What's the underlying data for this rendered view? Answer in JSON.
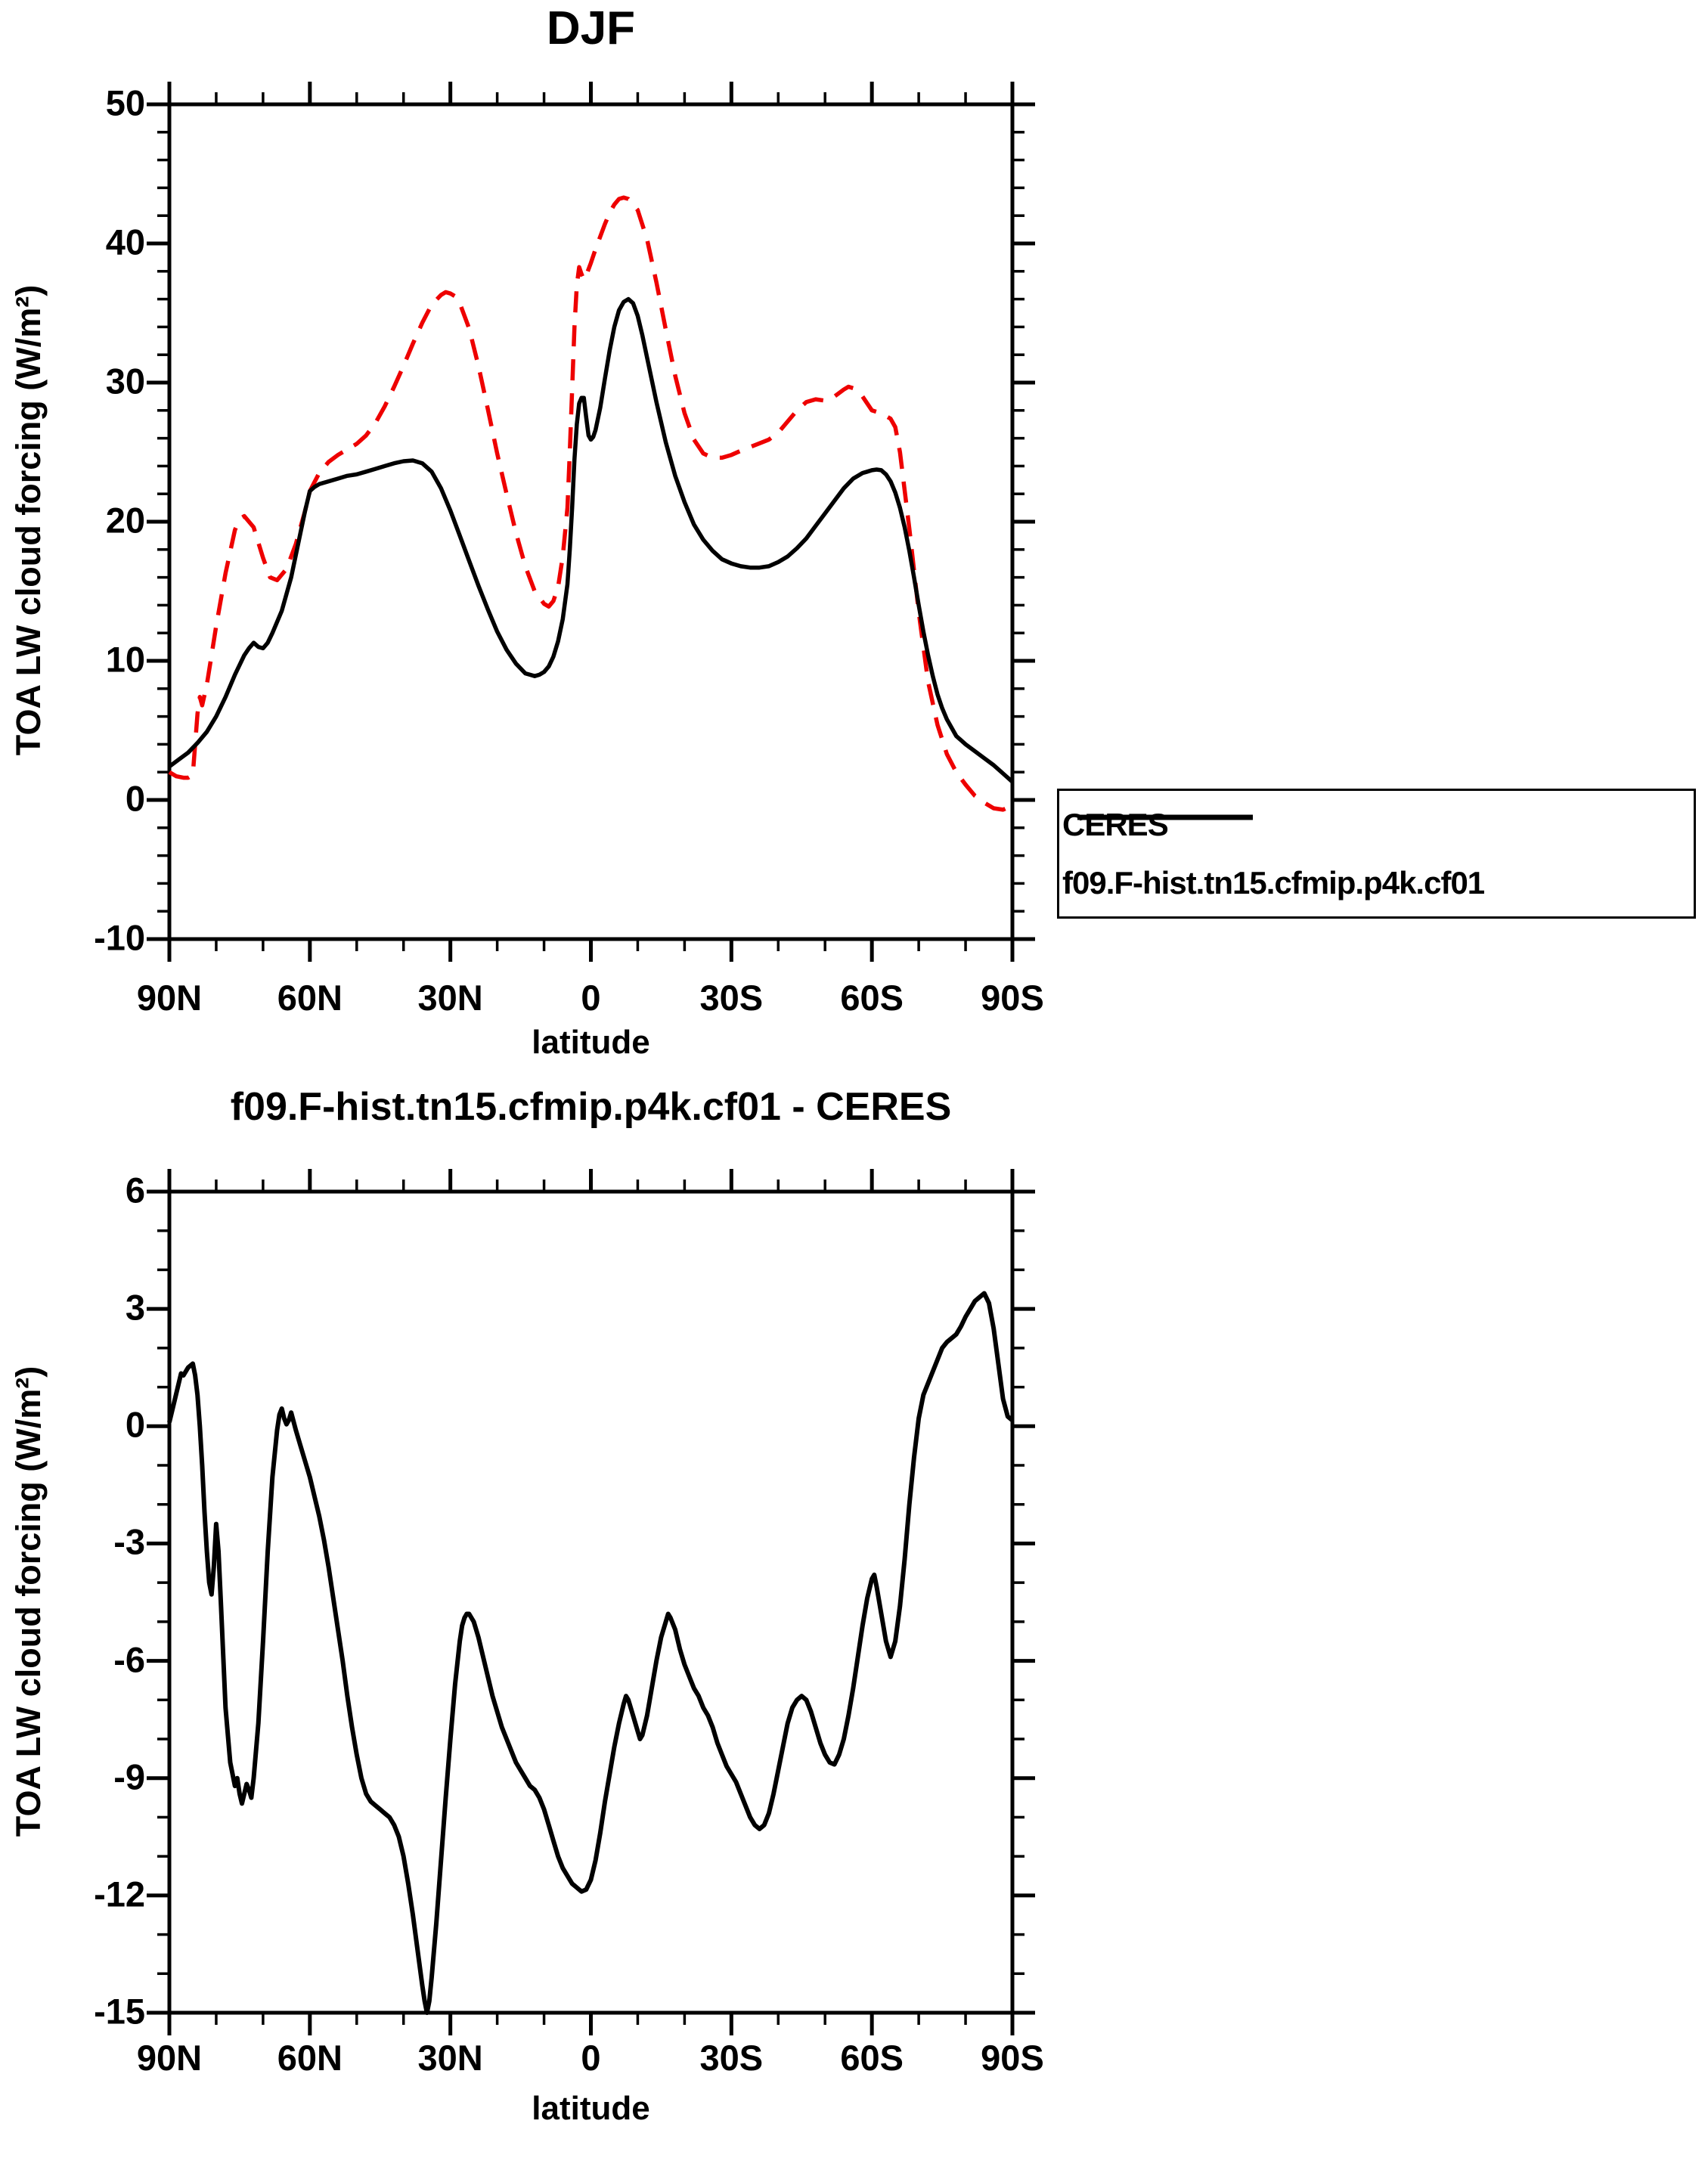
{
  "colors": {
    "ceres": "#ee0000",
    "model": "#000000",
    "frame": "#000000",
    "background": "#ffffff"
  },
  "top_chart": {
    "title": "DJF",
    "ylabel": "TOA LW cloud forcing (W/m²)",
    "xlabel": "latitude",
    "x_tick_labels": [
      "90N",
      "60N",
      "30N",
      "0",
      "30S",
      "60S",
      "90S"
    ],
    "y_tick_labels": [
      "50",
      "40",
      "30",
      "20",
      "10",
      "0",
      "-10"
    ],
    "legend": {
      "entries": [
        {
          "label": "CERES"
        },
        {
          "label": "f09.F-hist.tn15.cfmip.p4k.cf01"
        }
      ]
    }
  },
  "bottom_chart": {
    "title": "f09.F-hist.tn15.cfmip.p4k.cf01 - CERES",
    "ylabel": "TOA LW cloud forcing (W/m²)",
    "xlabel": "latitude",
    "x_tick_labels": [
      "90N",
      "60N",
      "30N",
      "0",
      "30S",
      "60S",
      "90S"
    ],
    "y_tick_labels": [
      "6",
      "3",
      "0",
      "-3",
      "-6",
      "-9",
      "-12",
      "-15"
    ]
  },
  "chart_data": [
    {
      "type": "line",
      "title": "DJF",
      "xlabel": "latitude",
      "ylabel": "TOA LW cloud forcing (W/m2)",
      "xlim": [
        90,
        -90
      ],
      "ylim": [
        -10,
        50
      ],
      "x_major_tick_deg": 30,
      "x_minor_tick_deg": 10,
      "y_major_step": 10,
      "y_minor_step": 2,
      "grid": false,
      "legend_position": "outside-right",
      "series": [
        {
          "name": "CERES",
          "color": "#ee0000",
          "style": "dashed",
          "lat": [
            90,
            88.5,
            87,
            86,
            85,
            84,
            83.5,
            83,
            82,
            81,
            80,
            78,
            76,
            75,
            74,
            72,
            70,
            68.5,
            67,
            65,
            63,
            61,
            60,
            58,
            56,
            54,
            52,
            50,
            48,
            46,
            44,
            42,
            40,
            38,
            36,
            34,
            32,
            31,
            30,
            29,
            28,
            26,
            24,
            22,
            20,
            18,
            16,
            14,
            12,
            10,
            9,
            8,
            7,
            6,
            5,
            4.5,
            4,
            3.5,
            3,
            2.5,
            2,
            1.5,
            1,
            0,
            -1,
            -2,
            -3,
            -4,
            -5,
            -6,
            -7,
            -8,
            -10,
            -12,
            -14,
            -16,
            -18,
            -20,
            -22,
            -24,
            -26,
            -28,
            -30,
            -32,
            -35,
            -38,
            -40,
            -42,
            -44,
            -46,
            -48,
            -50,
            -52,
            -54,
            -55,
            -56,
            -57,
            -58,
            -60,
            -62,
            -63,
            -64,
            -65,
            -66,
            -68,
            -70,
            -72,
            -74,
            -76,
            -78,
            -80,
            -82,
            -84,
            -86,
            -88,
            -90
          ],
          "values": [
            2.0,
            1.7,
            1.6,
            1.6,
            1.8,
            6.2,
            7.4,
            6.8,
            8.3,
            10.4,
            12.5,
            16.3,
            19.4,
            20.2,
            20.4,
            19.6,
            17.4,
            16.0,
            15.8,
            16.6,
            18.4,
            20.8,
            22.2,
            23.5,
            24.3,
            24.8,
            25.2,
            25.6,
            26.2,
            27.1,
            28.3,
            29.7,
            31.2,
            32.8,
            34.3,
            35.6,
            36.3,
            36.5,
            36.4,
            36.2,
            35.7,
            33.9,
            31.2,
            28.1,
            24.9,
            22.0,
            19.2,
            16.8,
            15.0,
            14.1,
            13.9,
            14.3,
            15.3,
            17.5,
            21.0,
            25.0,
            29.5,
            34.0,
            37.0,
            38.3,
            37.8,
            37.4,
            37.7,
            38.6,
            39.6,
            40.5,
            41.4,
            42.2,
            42.8,
            43.2,
            43.3,
            43.2,
            42.4,
            40.3,
            37.2,
            33.8,
            30.5,
            27.8,
            25.9,
            24.9,
            24.6,
            24.6,
            24.8,
            25.1,
            25.5,
            25.9,
            26.4,
            27.2,
            28.0,
            28.6,
            28.8,
            28.7,
            29.0,
            29.5,
            29.7,
            29.6,
            29.2,
            29.0,
            28.0,
            27.8,
            27.6,
            27.4,
            26.8,
            25.0,
            19.5,
            13.5,
            8.5,
            5.4,
            3.3,
            2.0,
            1.1,
            0.3,
            -0.2,
            -0.6,
            -0.7,
            -0.4
          ]
        },
        {
          "name": "f09.F-hist.tn15.cfmip.p4k.cf01",
          "color": "#000000",
          "style": "solid",
          "lat": [
            90,
            88,
            86,
            84,
            82,
            80,
            78,
            76,
            74,
            73,
            72,
            71,
            70,
            69,
            68,
            66,
            64,
            62,
            61,
            60,
            59,
            58,
            56,
            54,
            52,
            50,
            48,
            46,
            44,
            42,
            40,
            38,
            36,
            34,
            32,
            30,
            28,
            26,
            24,
            22,
            20,
            18,
            16,
            14,
            13,
            12,
            11,
            10,
            9,
            8,
            7,
            6,
            5,
            4.5,
            4,
            3.5,
            3,
            2.5,
            2,
            1.5,
            1,
            0.5,
            0,
            -0.5,
            -1,
            -2,
            -3,
            -4,
            -5,
            -6,
            -7,
            -8,
            -9,
            -10,
            -11,
            -12,
            -14,
            -16,
            -18,
            -20,
            -22,
            -24,
            -26,
            -28,
            -30,
            -32,
            -34,
            -36,
            -38,
            -40,
            -42,
            -44,
            -46,
            -48,
            -50,
            -52,
            -54,
            -56,
            -58,
            -59,
            -60,
            -61,
            -62,
            -63,
            -64,
            -65,
            -66,
            -67,
            -68,
            -69,
            -70,
            -71,
            -72,
            -73,
            -74,
            -75,
            -76,
            -78,
            -80,
            -82,
            -84,
            -86,
            -88,
            -90
          ],
          "values": [
            2.4,
            2.9,
            3.4,
            4.1,
            4.9,
            6.0,
            7.4,
            9.0,
            10.4,
            10.9,
            11.3,
            11.0,
            10.9,
            11.3,
            12.0,
            13.6,
            16.0,
            19.2,
            20.8,
            22.2,
            22.5,
            22.7,
            22.9,
            23.1,
            23.3,
            23.4,
            23.6,
            23.8,
            24.0,
            24.2,
            24.35,
            24.4,
            24.2,
            23.6,
            22.4,
            20.8,
            19.0,
            17.2,
            15.4,
            13.7,
            12.1,
            10.8,
            9.8,
            9.1,
            9.0,
            8.9,
            9.0,
            9.2,
            9.6,
            10.3,
            11.4,
            13.0,
            15.5,
            18.0,
            21.0,
            24.5,
            27.0,
            28.5,
            28.9,
            28.9,
            27.5,
            26.2,
            25.9,
            26.1,
            26.6,
            28.2,
            30.3,
            32.3,
            34.0,
            35.2,
            35.8,
            36.0,
            35.7,
            34.8,
            33.4,
            31.8,
            28.6,
            25.7,
            23.3,
            21.4,
            19.8,
            18.7,
            17.9,
            17.3,
            17.0,
            16.8,
            16.7,
            16.7,
            16.8,
            17.1,
            17.5,
            18.1,
            18.8,
            19.7,
            20.6,
            21.5,
            22.4,
            23.1,
            23.5,
            23.6,
            23.7,
            23.75,
            23.7,
            23.4,
            22.9,
            22.1,
            21.0,
            19.6,
            17.9,
            16.0,
            14.0,
            12.1,
            10.4,
            8.9,
            7.6,
            6.6,
            5.8,
            4.6,
            4.0,
            3.5,
            3.0,
            2.5,
            1.9,
            1.3
          ]
        }
      ]
    },
    {
      "type": "line",
      "title": "f09.F-hist.tn15.cfmip.p4k.cf01 - CERES",
      "xlabel": "latitude",
      "ylabel": "TOA LW cloud forcing (W/m2)",
      "xlim": [
        90,
        -90
      ],
      "ylim": [
        -15,
        6
      ],
      "x_major_tick_deg": 30,
      "x_minor_tick_deg": 10,
      "y_major_step": 3,
      "y_minor_step": 1,
      "grid": false,
      "series": [
        {
          "name": "f09.F-hist.tn15.cfmip.p4k.cf01 - CERES",
          "color": "#000000",
          "style": "solid",
          "lat": [
            90,
            89,
            88,
            87.5,
            87,
            86,
            85,
            84.5,
            84,
            83.5,
            83,
            82.5,
            82,
            81.5,
            81,
            80.5,
            80,
            79.5,
            79,
            78,
            77,
            76,
            75.5,
            75,
            74.5,
            74,
            73.5,
            73,
            72.5,
            72,
            71,
            70,
            69,
            68,
            67,
            66.5,
            66,
            65.5,
            65,
            64.5,
            64,
            63,
            62,
            61,
            60,
            59,
            58,
            57,
            56,
            55,
            54,
            53,
            52,
            51,
            50,
            49,
            48,
            47,
            46,
            45,
            44,
            43,
            42,
            41,
            40,
            39,
            38,
            37,
            36,
            35.5,
            35,
            34.5,
            34,
            33,
            32,
            31,
            30,
            29,
            28,
            27.5,
            27,
            26.5,
            26,
            25,
            24,
            23,
            22,
            21,
            20,
            19,
            18,
            17,
            16,
            15,
            14,
            13,
            12,
            11,
            10,
            9,
            8,
            7,
            6,
            5,
            4,
            3,
            2,
            1,
            0,
            -1,
            -2,
            -3,
            -4,
            -5,
            -6,
            -7,
            -7.5,
            -8,
            -9,
            -10,
            -10.5,
            -11,
            -12,
            -13,
            -14,
            -15,
            -16,
            -16.5,
            -17,
            -18,
            -19,
            -20,
            -21,
            -22,
            -23,
            -24,
            -25,
            -26,
            -27,
            -28,
            -29,
            -30,
            -31,
            -32,
            -33,
            -34,
            -35,
            -36,
            -37,
            -38,
            -39,
            -40,
            -41,
            -42,
            -43,
            -44,
            -45,
            -46,
            -47,
            -48,
            -49,
            -50,
            -51,
            -52,
            -53,
            -54,
            -55,
            -56,
            -57,
            -58,
            -59,
            -60,
            -60.5,
            -61,
            -62,
            -63,
            -64,
            -65,
            -66,
            -67,
            -68,
            -69,
            -70,
            -71,
            -72,
            -73,
            -74,
            -75,
            -76,
            -77,
            -78,
            -79,
            -80,
            -81,
            -82,
            -83,
            -84,
            -85,
            -86,
            -87,
            -88,
            -89,
            -90
          ],
          "values": [
            0.1,
            0.6,
            1.1,
            1.35,
            1.3,
            1.5,
            1.6,
            1.3,
            0.8,
            0.0,
            -1.0,
            -2.2,
            -3.2,
            -4.0,
            -4.3,
            -3.6,
            -2.5,
            -3.2,
            -4.5,
            -7.2,
            -8.6,
            -9.2,
            -9.0,
            -9.4,
            -9.65,
            -9.4,
            -9.15,
            -9.3,
            -9.5,
            -9.0,
            -7.6,
            -5.5,
            -3.2,
            -1.3,
            -0.1,
            0.3,
            0.45,
            0.2,
            0.05,
            0.15,
            0.35,
            -0.1,
            -0.5,
            -0.9,
            -1.3,
            -1.8,
            -2.3,
            -2.9,
            -3.6,
            -4.4,
            -5.2,
            -6.0,
            -6.9,
            -7.7,
            -8.4,
            -9.0,
            -9.4,
            -9.6,
            -9.7,
            -9.8,
            -9.9,
            -10.0,
            -10.2,
            -10.5,
            -11.0,
            -11.7,
            -12.5,
            -13.4,
            -14.3,
            -14.7,
            -15.0,
            -14.7,
            -14.1,
            -12.7,
            -11.1,
            -9.5,
            -8.0,
            -6.6,
            -5.5,
            -5.1,
            -4.9,
            -4.8,
            -4.8,
            -5.0,
            -5.4,
            -5.9,
            -6.4,
            -6.9,
            -7.3,
            -7.7,
            -8.0,
            -8.3,
            -8.6,
            -8.8,
            -9.0,
            -9.2,
            -9.3,
            -9.5,
            -9.8,
            -10.2,
            -10.6,
            -11.0,
            -11.3,
            -11.5,
            -11.7,
            -11.8,
            -11.9,
            -11.85,
            -11.6,
            -11.1,
            -10.4,
            -9.6,
            -8.9,
            -8.2,
            -7.6,
            -7.1,
            -6.9,
            -7.0,
            -7.4,
            -7.8,
            -8.0,
            -7.9,
            -7.4,
            -6.7,
            -6.0,
            -5.4,
            -5.0,
            -4.8,
            -4.9,
            -5.2,
            -5.7,
            -6.1,
            -6.4,
            -6.7,
            -6.9,
            -7.2,
            -7.4,
            -7.7,
            -8.1,
            -8.4,
            -8.7,
            -8.9,
            -9.1,
            -9.4,
            -9.7,
            -10.0,
            -10.2,
            -10.3,
            -10.2,
            -9.9,
            -9.4,
            -8.8,
            -8.2,
            -7.6,
            -7.2,
            -7.0,
            -6.9,
            -7.0,
            -7.3,
            -7.7,
            -8.1,
            -8.4,
            -8.6,
            -8.65,
            -8.4,
            -8.0,
            -7.4,
            -6.7,
            -5.9,
            -5.1,
            -4.4,
            -3.9,
            -3.8,
            -4.1,
            -4.8,
            -5.5,
            -5.9,
            -5.5,
            -4.6,
            -3.4,
            -2.0,
            -0.8,
            0.2,
            0.8,
            1.1,
            1.4,
            1.7,
            2.0,
            2.15,
            2.25,
            2.35,
            2.55,
            2.8,
            3.0,
            3.2,
            3.3,
            3.4,
            3.15,
            2.5,
            1.6,
            0.7,
            0.25,
            0.15
          ]
        }
      ]
    }
  ]
}
